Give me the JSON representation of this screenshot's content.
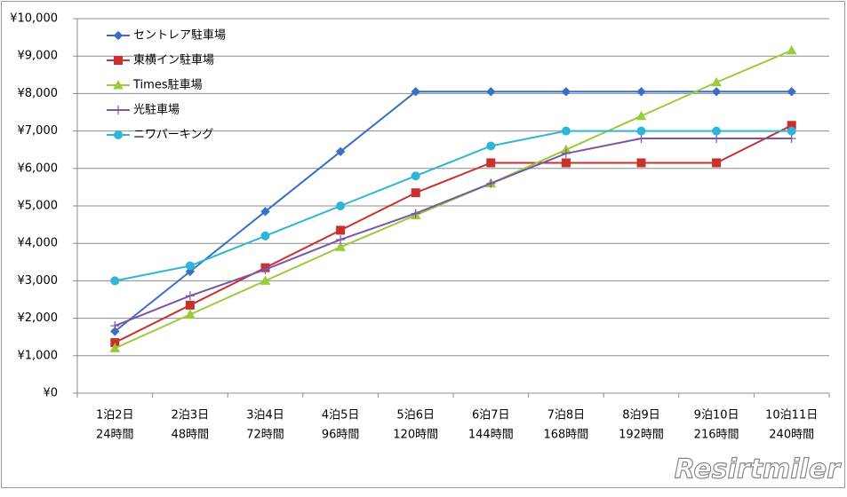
{
  "chart_data": {
    "type": "line",
    "categories": [
      [
        "1泊2日",
        "24時間"
      ],
      [
        "2泊3日",
        "48時間"
      ],
      [
        "3泊4日",
        "72時間"
      ],
      [
        "4泊5日",
        "96時間"
      ],
      [
        "5泊6日",
        "120時間"
      ],
      [
        "6泊7日",
        "144時間"
      ],
      [
        "7泊8日",
        "168時間"
      ],
      [
        "8泊9日",
        "192時間"
      ],
      [
        "9泊10日",
        "216時間"
      ],
      [
        "10泊11日",
        "240時間"
      ]
    ],
    "series": [
      {
        "name": "セントレア駐車場",
        "color": "#3a6fc4",
        "marker": "diamond",
        "values": [
          1650,
          3250,
          4850,
          6450,
          8050,
          8050,
          8050,
          8050,
          8050,
          8050
        ]
      },
      {
        "name": "東横イン駐車場",
        "color": "#c8312c",
        "marker": "square",
        "values": [
          1350,
          2350,
          3350,
          4350,
          5350,
          6150,
          6150,
          6150,
          6150,
          7150
        ]
      },
      {
        "name": "Times駐車場",
        "color": "#9acb3c",
        "marker": "triangle",
        "values": [
          1200,
          2100,
          3000,
          3900,
          4750,
          5600,
          6500,
          7400,
          8300,
          9150
        ]
      },
      {
        "name": "光駐車場",
        "color": "#7b55a6",
        "marker": "plus",
        "values": [
          1800,
          2600,
          3300,
          4100,
          4800,
          5600,
          6400,
          6800,
          6800,
          6800
        ]
      },
      {
        "name": "ニワパーキング",
        "color": "#30b4d8",
        "marker": "circle",
        "values": [
          3000,
          3400,
          4200,
          5000,
          5800,
          6600,
          7000,
          7000,
          7000,
          7000
        ]
      }
    ],
    "ylim": [
      0,
      10000
    ],
    "yticks": [
      {
        "value": 0,
        "label": "¥0"
      },
      {
        "value": 1000,
        "label": "¥1,000"
      },
      {
        "value": 2000,
        "label": "¥2,000"
      },
      {
        "value": 3000,
        "label": "¥3,000"
      },
      {
        "value": 4000,
        "label": "¥4,000"
      },
      {
        "value": 5000,
        "label": "¥5,000"
      },
      {
        "value": 6000,
        "label": "¥6,000"
      },
      {
        "value": 7000,
        "label": "¥7,000"
      },
      {
        "value": 8000,
        "label": "¥8,000"
      },
      {
        "value": 9000,
        "label": "¥9,000"
      },
      {
        "value": 10000,
        "label": "¥10,000"
      }
    ],
    "grid": true,
    "legend": "upper-left",
    "watermark": "Resirtmiler"
  }
}
